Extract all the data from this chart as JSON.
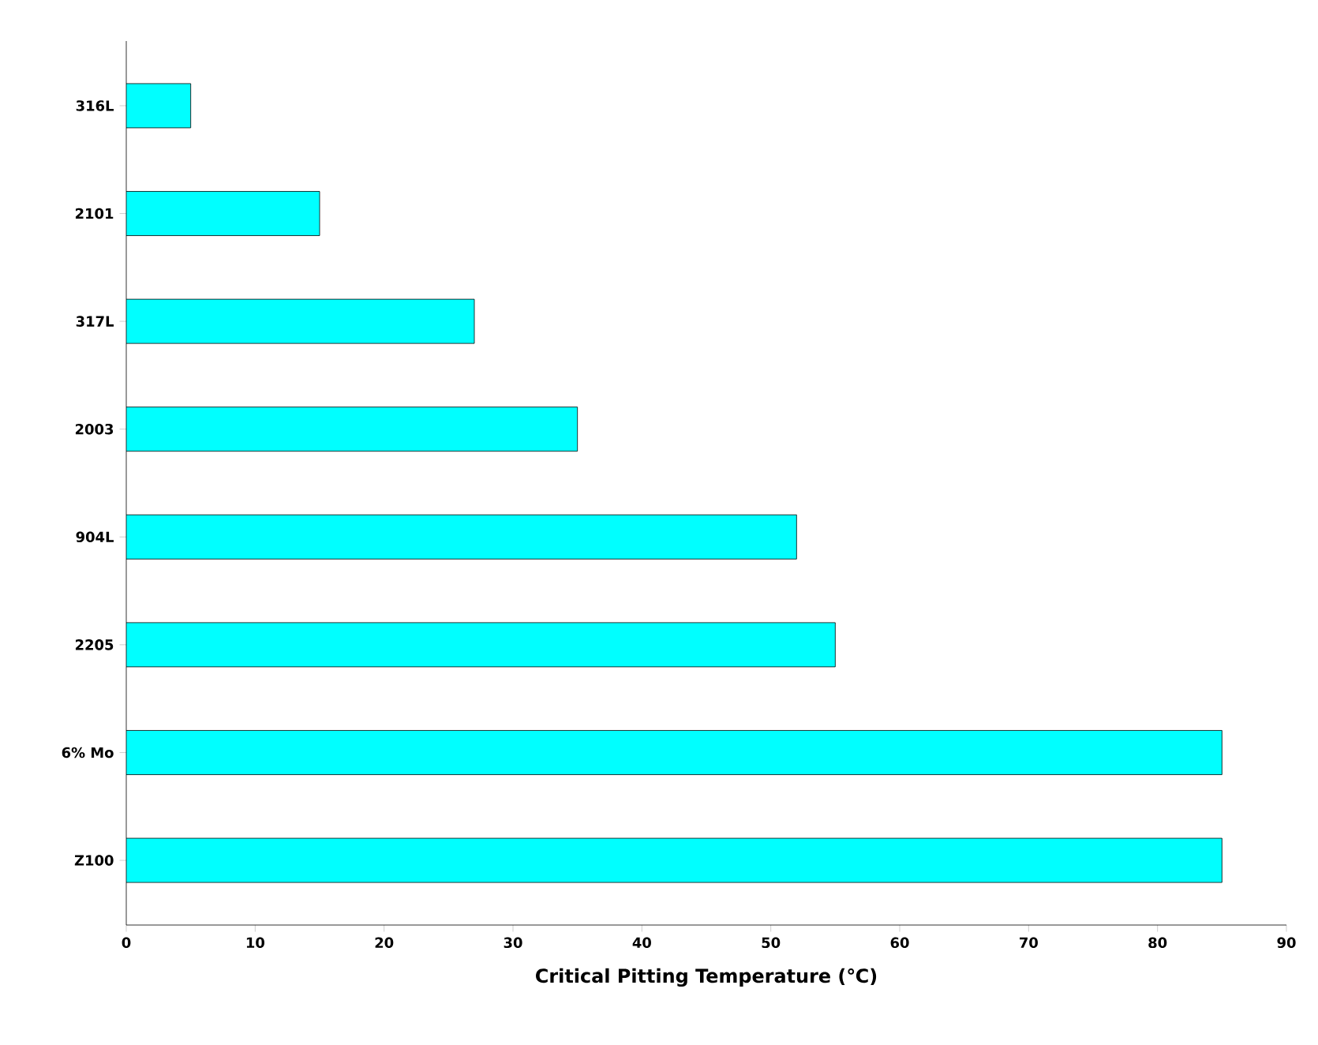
{
  "chart_data": {
    "type": "bar",
    "orientation": "horizontal",
    "xlabel": "Critical Pitting Temperature (℃)",
    "categories": [
      "316L",
      "2101",
      "317L",
      "2003",
      "904L",
      "2205",
      "6% Mo",
      "Z100"
    ],
    "values": [
      5,
      15,
      27,
      35,
      52,
      55,
      85,
      85
    ],
    "color": "#00ffff",
    "xlim": [
      0,
      90
    ],
    "xticks": [
      0,
      10,
      20,
      30,
      40,
      50,
      60,
      70,
      80,
      90
    ]
  }
}
